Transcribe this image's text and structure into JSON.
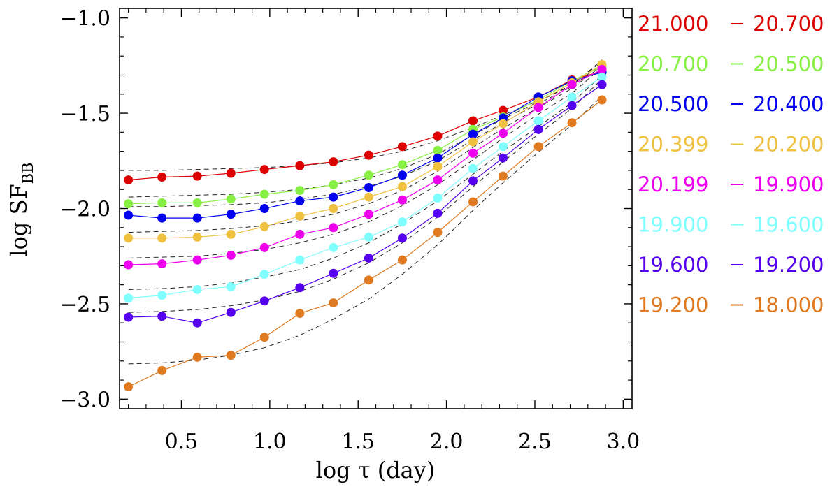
{
  "chart_data": {
    "type": "line",
    "xlabel": "log τ (day)",
    "ylabel_main": "log SF",
    "ylabel_sub": "BB",
    "xlim": [
      0.15,
      3.05
    ],
    "ylim": [
      -3.05,
      -0.95
    ],
    "xticks": [
      0.5,
      1.0,
      1.5,
      2.0,
      2.5,
      3.0
    ],
    "xtick_labels": [
      "0.5",
      "1.0",
      "1.5",
      "2.0",
      "2.5",
      "3.0"
    ],
    "yticks": [
      -1.0,
      -1.5,
      -2.0,
      -2.5,
      -3.0
    ],
    "ytick_labels": [
      "−1.0",
      "−1.5",
      "−2.0",
      "−2.5",
      "−3.0"
    ],
    "legend_position": "right-outside",
    "x": [
      0.2,
      0.39,
      0.59,
      0.78,
      0.97,
      1.17,
      1.36,
      1.56,
      1.75,
      1.95,
      2.15,
      2.32,
      2.52,
      2.71,
      2.88
    ],
    "series": [
      {
        "name": "21.000 – 20.700",
        "from": "21.000",
        "to": "20.700",
        "color": "#dd0000",
        "values": [
          -1.85,
          -1.835,
          -1.83,
          -1.815,
          -1.795,
          -1.775,
          -1.755,
          -1.72,
          -1.675,
          -1.62,
          -1.54,
          -1.485,
          -1.415,
          -1.325,
          -1.28
        ],
        "fit": [
          -1.8,
          -1.8,
          -1.795,
          -1.79,
          -1.785,
          -1.775,
          -1.76,
          -1.735,
          -1.7,
          -1.645,
          -1.575,
          -1.51,
          -1.435,
          -1.355,
          -1.22
        ]
      },
      {
        "name": "20.700 – 20.500",
        "from": "20.700",
        "to": "20.500",
        "color": "#88f044",
        "values": [
          -1.975,
          -1.97,
          -1.97,
          -1.95,
          -1.925,
          -1.905,
          -1.875,
          -1.825,
          -1.77,
          -1.695,
          -1.585,
          -1.52,
          -1.43,
          -1.33,
          -1.255
        ],
        "fit": [
          -1.94,
          -1.935,
          -1.93,
          -1.925,
          -1.915,
          -1.9,
          -1.875,
          -1.84,
          -1.79,
          -1.715,
          -1.615,
          -1.53,
          -1.44,
          -1.35,
          -1.23
        ]
      },
      {
        "name": "20.500 – 20.400",
        "from": "20.500",
        "to": "20.400",
        "color": "#0000ee",
        "values": [
          -2.035,
          -2.05,
          -2.05,
          -2.03,
          -2.0,
          -1.96,
          -1.94,
          -1.89,
          -1.825,
          -1.735,
          -1.61,
          -1.525,
          -1.415,
          -1.33,
          -1.285
        ],
        "fit": [
          -1.99,
          -1.99,
          -1.985,
          -1.98,
          -1.97,
          -1.95,
          -1.925,
          -1.885,
          -1.83,
          -1.75,
          -1.64,
          -1.55,
          -1.45,
          -1.36,
          -1.24
        ]
      },
      {
        "name": "20.399 – 20.200",
        "from": "20.399",
        "to": "20.200",
        "color": "#f0c040",
        "values": [
          -2.155,
          -2.155,
          -2.15,
          -2.135,
          -2.095,
          -2.04,
          -2.0,
          -1.94,
          -1.885,
          -1.78,
          -1.65,
          -1.555,
          -1.44,
          -1.34,
          -1.245
        ],
        "fit": [
          -2.125,
          -2.12,
          -2.115,
          -2.105,
          -2.09,
          -2.065,
          -2.03,
          -1.975,
          -1.905,
          -1.805,
          -1.68,
          -1.58,
          -1.47,
          -1.37,
          -1.25
        ]
      },
      {
        "name": "20.199 – 19.900",
        "from": "20.199",
        "to": "19.900",
        "color": "#ee00ee",
        "values": [
          -2.295,
          -2.29,
          -2.27,
          -2.245,
          -2.205,
          -2.135,
          -2.1,
          -2.03,
          -1.955,
          -1.85,
          -1.71,
          -1.605,
          -1.47,
          -1.35,
          -1.27
        ],
        "fit": [
          -2.26,
          -2.255,
          -2.25,
          -2.235,
          -2.215,
          -2.18,
          -2.135,
          -2.07,
          -1.985,
          -1.875,
          -1.745,
          -1.63,
          -1.505,
          -1.395,
          -1.26
        ]
      },
      {
        "name": "19.900 – 19.600",
        "from": "19.900",
        "to": "19.600",
        "color": "#80ffff",
        "values": [
          -2.47,
          -2.455,
          -2.425,
          -2.41,
          -2.345,
          -2.27,
          -2.205,
          -2.15,
          -2.07,
          -1.945,
          -1.79,
          -1.675,
          -1.54,
          -1.415,
          -1.31
        ],
        "fit": [
          -2.425,
          -2.42,
          -2.41,
          -2.39,
          -2.36,
          -2.32,
          -2.26,
          -2.18,
          -2.08,
          -1.96,
          -1.82,
          -1.7,
          -1.57,
          -1.445,
          -1.3
        ]
      },
      {
        "name": "19.600 – 19.200",
        "from": "19.600",
        "to": "19.200",
        "color": "#5500ee",
        "values": [
          -2.57,
          -2.565,
          -2.6,
          -2.545,
          -2.485,
          -2.415,
          -2.34,
          -2.26,
          -2.155,
          -2.025,
          -1.855,
          -1.735,
          -1.585,
          -1.46,
          -1.35
        ],
        "fit": [
          -2.545,
          -2.54,
          -2.53,
          -2.51,
          -2.48,
          -2.435,
          -2.37,
          -2.285,
          -2.18,
          -2.045,
          -1.885,
          -1.755,
          -1.61,
          -1.475,
          -1.32
        ]
      },
      {
        "name": "19.200 – 18.000",
        "from": "19.200",
        "to": "18.000",
        "color": "#e07a20",
        "values": [
          -2.935,
          -2.85,
          -2.78,
          -2.77,
          -2.675,
          -2.55,
          -2.495,
          -2.375,
          -2.27,
          -2.125,
          -1.965,
          -1.83,
          -1.675,
          -1.55,
          -1.43
        ],
        "fit": [
          -2.815,
          -2.81,
          -2.795,
          -2.77,
          -2.73,
          -2.665,
          -2.58,
          -2.475,
          -2.345,
          -2.19,
          -2.01,
          -1.865,
          -1.705,
          -1.56,
          -1.41
        ]
      }
    ]
  }
}
